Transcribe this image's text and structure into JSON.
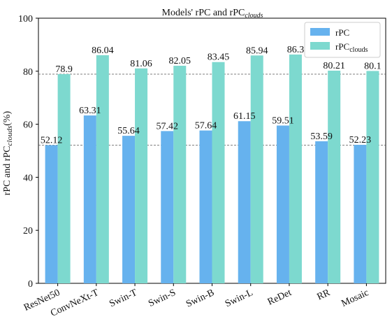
{
  "chart_data": {
    "type": "bar",
    "title": "Models' rPC and rPC",
    "title_subscript": "clouds",
    "ylabel": "rPC and rPC",
    "ylabel_subscript": "clouds",
    "ylabel_suffix": "(%)",
    "ylim": [
      0,
      100
    ],
    "yticks": [
      0,
      20,
      40,
      60,
      80,
      100
    ],
    "grid": false,
    "legend_position": "top-right",
    "categories": [
      "ResNet50",
      "ConvNeXt-T",
      "Swin-T",
      "Swin-S",
      "Swin-B",
      "Swin-L",
      "ReDet",
      "RR",
      "Mosaic"
    ],
    "series": [
      {
        "name": "rPC",
        "legend_label": "rPC",
        "legend_subscript": "",
        "color": "#66b2ee",
        "values": [
          52.12,
          63.31,
          55.64,
          57.42,
          57.64,
          61.15,
          59.51,
          53.59,
          52.23
        ],
        "labels": [
          "52.12",
          "63.31",
          "55.64",
          "57.42",
          "57.64",
          "61.15",
          "59.51",
          "53.59",
          "52.23"
        ]
      },
      {
        "name": "rPCclouds",
        "legend_label": "rPC",
        "legend_subscript": "clouds",
        "color": "#7dd9cf",
        "values": [
          78.9,
          86.04,
          81.06,
          82.05,
          83.45,
          85.94,
          86.3,
          80.21,
          80.1
        ],
        "labels": [
          "78.9",
          "86.04",
          "81.06",
          "82.05",
          "83.45",
          "85.94",
          "86.3",
          "80.21",
          "80.1"
        ]
      }
    ],
    "reference_lines": [
      {
        "y": 78.9,
        "style": "dashed"
      },
      {
        "y": 52.12,
        "style": "dashed"
      }
    ]
  }
}
